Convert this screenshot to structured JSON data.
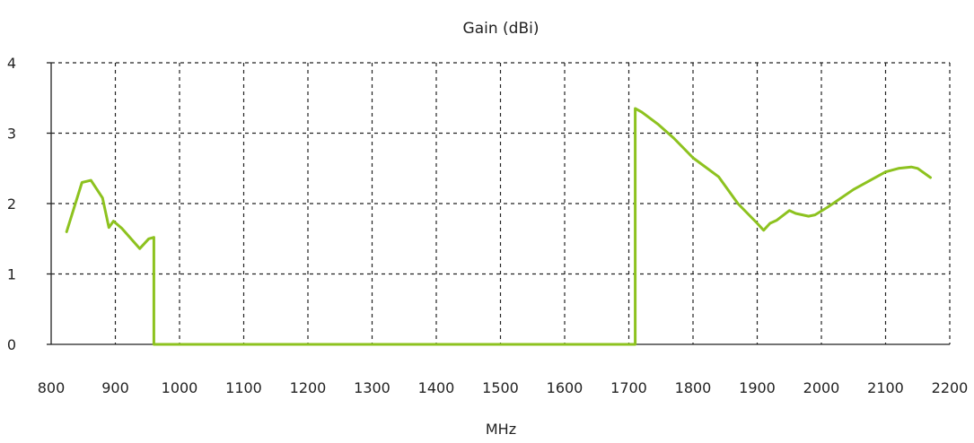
{
  "chart_data": {
    "type": "line",
    "title": "Gain (dBi)",
    "xlabel": "MHz",
    "ylabel": "",
    "xlim": [
      800,
      2200
    ],
    "ylim": [
      0,
      4
    ],
    "x_ticks": [
      800,
      900,
      1000,
      1100,
      1200,
      1300,
      1400,
      1500,
      1600,
      1700,
      1800,
      1900,
      2000,
      2100,
      2200
    ],
    "y_ticks": [
      0,
      1,
      2,
      3,
      4
    ],
    "grid": true,
    "color": "#8dc21f",
    "series": [
      {
        "points": [
          [
            824,
            1.6
          ],
          [
            848,
            2.3
          ],
          [
            862,
            2.33
          ],
          [
            880,
            2.08
          ],
          [
            890,
            1.66
          ],
          [
            897,
            1.75
          ],
          [
            910,
            1.65
          ],
          [
            938,
            1.36
          ],
          [
            952,
            1.5
          ],
          [
            960,
            1.52
          ],
          [
            960,
            0.0
          ],
          [
            1710,
            0.0
          ],
          [
            1710,
            3.35
          ],
          [
            1720,
            3.3
          ],
          [
            1745,
            3.13
          ],
          [
            1770,
            2.93
          ],
          [
            1800,
            2.65
          ],
          [
            1840,
            2.38
          ],
          [
            1870,
            2.0
          ],
          [
            1900,
            1.72
          ],
          [
            1910,
            1.62
          ],
          [
            1920,
            1.72
          ],
          [
            1930,
            1.76
          ],
          [
            1950,
            1.9
          ],
          [
            1960,
            1.86
          ],
          [
            1980,
            1.82
          ],
          [
            1990,
            1.84
          ],
          [
            2010,
            1.95
          ],
          [
            2050,
            2.2
          ],
          [
            2100,
            2.45
          ],
          [
            2120,
            2.5
          ],
          [
            2140,
            2.52
          ],
          [
            2150,
            2.5
          ],
          [
            2170,
            2.37
          ]
        ]
      }
    ]
  }
}
